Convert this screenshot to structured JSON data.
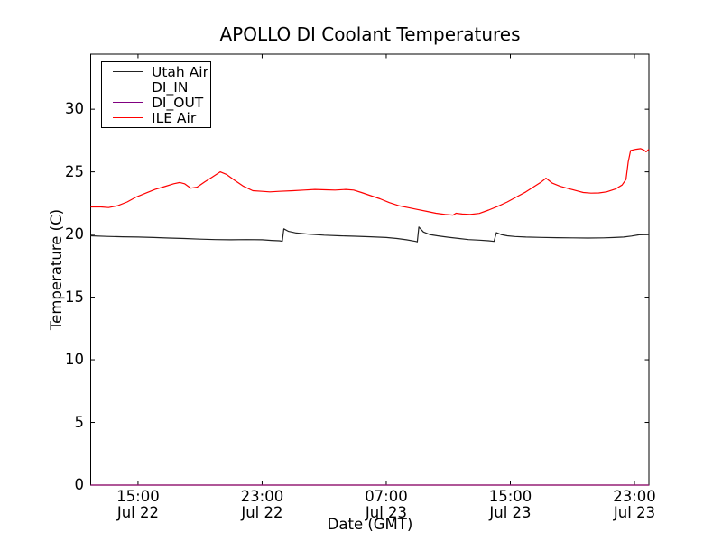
{
  "chart_data": {
    "type": "line",
    "title": "APOLLO DI Coolant Temperatures",
    "xlabel": "Date (GMT)",
    "ylabel": "Temperature (C)",
    "x_unit": "hours since Jul 22 00:00 GMT",
    "xlim": [
      11.95,
      47.93
    ],
    "ylim": [
      0,
      34.4
    ],
    "yticks": [
      0,
      5,
      10,
      15,
      20,
      25,
      30
    ],
    "xticks": [
      {
        "t": 15,
        "line1": "15:00",
        "line2": "Jul 22"
      },
      {
        "t": 23,
        "line1": "23:00",
        "line2": "Jul 22"
      },
      {
        "t": 31,
        "line1": "07:00",
        "line2": "Jul 23"
      },
      {
        "t": 39,
        "line1": "15:00",
        "line2": "Jul 23"
      },
      {
        "t": 47,
        "line1": "23:00",
        "line2": "Jul 23"
      }
    ],
    "grid": false,
    "legend_position": "upper left",
    "series": [
      {
        "name": "Utah Air",
        "color": "#222222",
        "points": [
          [
            11.95,
            19.9
          ],
          [
            13,
            19.85
          ],
          [
            14,
            19.82
          ],
          [
            15,
            19.8
          ],
          [
            16,
            19.76
          ],
          [
            17,
            19.72
          ],
          [
            18,
            19.68
          ],
          [
            19,
            19.63
          ],
          [
            20,
            19.6
          ],
          [
            21,
            19.58
          ],
          [
            22,
            19.6
          ],
          [
            23,
            19.58
          ],
          [
            23.6,
            19.53
          ],
          [
            24.1,
            19.5
          ],
          [
            24.3,
            19.47
          ],
          [
            24.4,
            20.45
          ],
          [
            24.7,
            20.25
          ],
          [
            25.2,
            20.12
          ],
          [
            26,
            20.03
          ],
          [
            27,
            19.95
          ],
          [
            28,
            19.9
          ],
          [
            29,
            19.86
          ],
          [
            30,
            19.82
          ],
          [
            31,
            19.76
          ],
          [
            31.7,
            19.68
          ],
          [
            32.3,
            19.58
          ],
          [
            32.9,
            19.45
          ],
          [
            33.0,
            19.42
          ],
          [
            33.1,
            20.6
          ],
          [
            33.4,
            20.2
          ],
          [
            33.8,
            20.0
          ],
          [
            34.3,
            19.9
          ],
          [
            35,
            19.78
          ],
          [
            35.7,
            19.68
          ],
          [
            36.3,
            19.6
          ],
          [
            37,
            19.55
          ],
          [
            37.6,
            19.5
          ],
          [
            37.95,
            19.45
          ],
          [
            38.1,
            20.15
          ],
          [
            38.4,
            20.0
          ],
          [
            38.8,
            19.9
          ],
          [
            39.3,
            19.84
          ],
          [
            40,
            19.8
          ],
          [
            41,
            19.77
          ],
          [
            42,
            19.75
          ],
          [
            43,
            19.73
          ],
          [
            44,
            19.72
          ],
          [
            45,
            19.73
          ],
          [
            45.7,
            19.76
          ],
          [
            46.3,
            19.8
          ],
          [
            46.8,
            19.88
          ],
          [
            47.3,
            19.98
          ],
          [
            47.93,
            20.0
          ]
        ]
      },
      {
        "name": "DI_IN",
        "color": "#ffa500",
        "points": [
          [
            11.95,
            0
          ],
          [
            47.93,
            0
          ]
        ]
      },
      {
        "name": "DI_OUT",
        "color": "#800080",
        "points": [
          [
            11.95,
            0
          ],
          [
            47.93,
            0
          ]
        ]
      },
      {
        "name": "ILE Air",
        "color": "#ff0000",
        "points": [
          [
            11.95,
            22.2
          ],
          [
            12.6,
            22.2
          ],
          [
            13.1,
            22.15
          ],
          [
            13.7,
            22.3
          ],
          [
            14.3,
            22.6
          ],
          [
            14.9,
            23.0
          ],
          [
            15.5,
            23.3
          ],
          [
            16.1,
            23.6
          ],
          [
            16.7,
            23.82
          ],
          [
            17.3,
            24.05
          ],
          [
            17.7,
            24.15
          ],
          [
            18.0,
            24.05
          ],
          [
            18.4,
            23.7
          ],
          [
            18.8,
            23.78
          ],
          [
            19.3,
            24.2
          ],
          [
            19.8,
            24.6
          ],
          [
            20.3,
            25.0
          ],
          [
            20.7,
            24.8
          ],
          [
            21.2,
            24.35
          ],
          [
            21.8,
            23.85
          ],
          [
            22.4,
            23.5
          ],
          [
            23.0,
            23.45
          ],
          [
            23.5,
            23.4
          ],
          [
            24.1,
            23.45
          ],
          [
            25,
            23.5
          ],
          [
            25.7,
            23.55
          ],
          [
            26.4,
            23.6
          ],
          [
            27.1,
            23.57
          ],
          [
            27.7,
            23.55
          ],
          [
            28.4,
            23.6
          ],
          [
            28.9,
            23.55
          ],
          [
            29.4,
            23.35
          ],
          [
            30,
            23.1
          ],
          [
            30.6,
            22.85
          ],
          [
            31.2,
            22.55
          ],
          [
            31.8,
            22.3
          ],
          [
            32.4,
            22.15
          ],
          [
            33,
            22.0
          ],
          [
            33.6,
            21.85
          ],
          [
            34.2,
            21.7
          ],
          [
            34.8,
            21.6
          ],
          [
            35.3,
            21.55
          ],
          [
            35.5,
            21.7
          ],
          [
            35.9,
            21.63
          ],
          [
            36.4,
            21.6
          ],
          [
            37,
            21.68
          ],
          [
            37.6,
            21.95
          ],
          [
            38.2,
            22.25
          ],
          [
            38.8,
            22.6
          ],
          [
            39.4,
            23.0
          ],
          [
            40,
            23.4
          ],
          [
            40.5,
            23.8
          ],
          [
            41,
            24.2
          ],
          [
            41.3,
            24.5
          ],
          [
            41.7,
            24.1
          ],
          [
            42.2,
            23.85
          ],
          [
            42.8,
            23.65
          ],
          [
            43.3,
            23.48
          ],
          [
            43.7,
            23.35
          ],
          [
            44.2,
            23.3
          ],
          [
            44.7,
            23.32
          ],
          [
            45.2,
            23.4
          ],
          [
            45.8,
            23.65
          ],
          [
            46.2,
            23.95
          ],
          [
            46.45,
            24.4
          ],
          [
            46.6,
            25.8
          ],
          [
            46.75,
            26.7
          ],
          [
            47.1,
            26.8
          ],
          [
            47.4,
            26.85
          ],
          [
            47.6,
            26.75
          ],
          [
            47.75,
            26.6
          ],
          [
            47.93,
            26.8
          ]
        ]
      }
    ]
  }
}
